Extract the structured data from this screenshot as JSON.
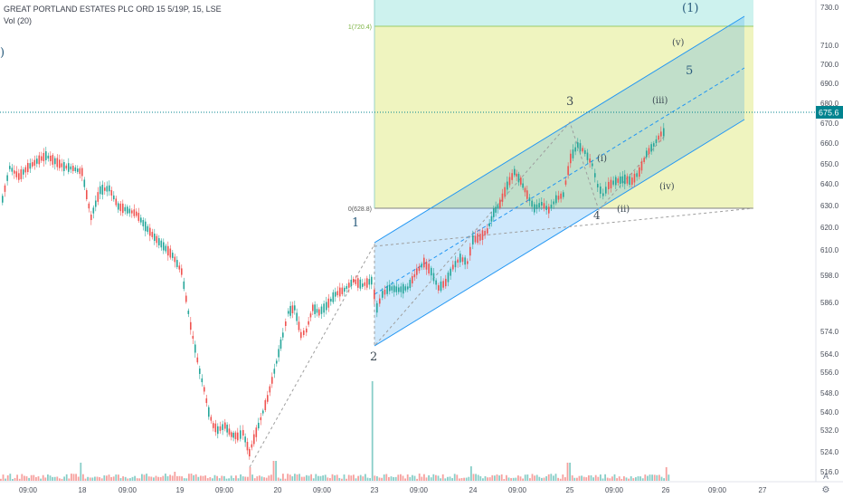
{
  "header": {
    "symbol_title": "GREAT PORTLAND ESTATES PLC ORD 15 5/19P, 15, LSE",
    "volume_label": "Vol (20)"
  },
  "price_axis": {
    "ticks": [
      "730.0",
      "710.0",
      "700.0",
      "690.0",
      "680.0",
      "670.0",
      "660.0",
      "650.0",
      "640.0",
      "630.0",
      "620.0",
      "610.0",
      "598.0",
      "586.0",
      "574.0",
      "564.0",
      "556.0",
      "548.0",
      "540.0",
      "532.0",
      "524.0",
      "516.0"
    ],
    "last_price": "675.6",
    "auto_label": "A"
  },
  "time_axis": {
    "ticks": [
      "09:00",
      "18",
      "09:00",
      "19",
      "09:00",
      "20",
      "09:00",
      "23",
      "09:00",
      "24",
      "09:00",
      "25",
      "09:00",
      "26",
      "09:00",
      "27"
    ]
  },
  "fib": {
    "level_top": "1(720.4)",
    "level_bottom": "0(628.8)"
  },
  "wave_labels": {
    "w1": "1",
    "w2": "2",
    "w3": "3",
    "w4": "4",
    "w5": "5",
    "wi": "(i)",
    "wii": "(ii)",
    "wiii": "(iii)",
    "wiv": "(iv)",
    "wv": "(v)",
    "deg1": "(1)",
    "left_edge": ")"
  },
  "colors": {
    "up": "#26a69a",
    "down": "#ef5350",
    "channel_fill": "#2196f3",
    "fib_fill": "#cddc39",
    "fib_top_fill": "#4dd0c1",
    "wave_text": "#2b5d7d",
    "roman_text": "#3d4a54",
    "price_line": "#00838f"
  }
}
